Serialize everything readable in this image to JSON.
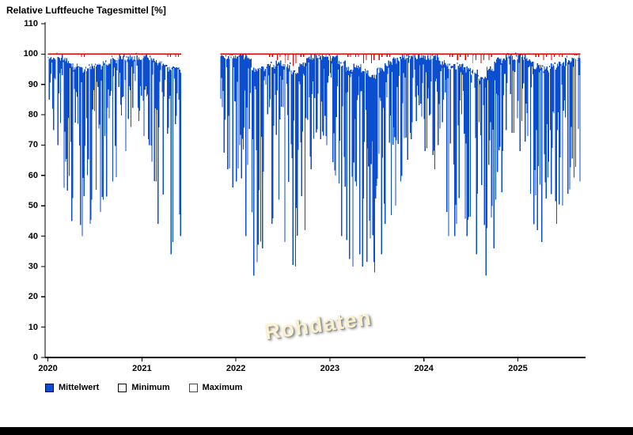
{
  "title": "Relative Luftfeuche Tagesmittel [%]",
  "watermark": "Rohdaten",
  "legend": {
    "items": [
      {
        "label": "Mittelwert",
        "fill": "#0b4fd0",
        "border": "#000000"
      },
      {
        "label": "Minimum",
        "fill": "#ffffff",
        "border": "#000000"
      },
      {
        "label": "Maximum",
        "fill": "#ffffff",
        "border": "#e60000"
      }
    ]
  },
  "colors": {
    "mean": "#0b4fd0",
    "max": "#e60000",
    "axis": "#000000",
    "background": "#ffffff",
    "watermark_fill": "#faf1cd"
  },
  "chart_data": {
    "type": "line",
    "title": "Relative Luftfeuche Tagesmittel [%]",
    "y_unit": "%",
    "ylim": [
      0,
      110
    ],
    "yticks": [
      0,
      10,
      20,
      30,
      40,
      50,
      60,
      70,
      80,
      90,
      100,
      110
    ],
    "xticks": [
      2020,
      2021,
      2022,
      2023,
      2024,
      2025
    ],
    "xlim": [
      2019.97,
      2025.72
    ],
    "grid": false,
    "legend_position": "bottom-left",
    "x_start": "2020-01",
    "x_resolution": "monthly envelope of daily values (daily series too dense to enumerate)",
    "data_gap": {
      "from": 2021.42,
      "to": 2021.83
    },
    "missing_day_lines": [
      2020.09,
      2022.53,
      2024.53
    ],
    "series": [
      {
        "name": "Mittelwert",
        "style": "daily mean line, rendered as dense blue vertical range strokes",
        "lower": [
          75,
          70,
          55,
          45,
          40,
          44,
          48,
          52,
          58,
          68,
          76,
          78,
          70,
          58,
          44,
          34,
          40,
          null,
          null,
          null,
          null,
          null,
          62,
          56,
          58,
          40,
          27,
          36,
          44,
          52,
          38,
          30,
          42,
          62,
          72,
          70,
          60,
          40,
          30,
          34,
          30,
          28,
          34,
          44,
          50,
          58,
          72,
          78,
          68,
          62,
          48,
          40,
          44,
          40,
          34,
          27,
          36,
          52,
          68,
          74,
          68,
          54,
          42,
          38,
          44,
          50,
          54,
          58
        ],
        "upper": [
          100,
          100,
          99,
          97,
          96,
          97,
          97,
          98,
          99,
          100,
          100,
          100,
          100,
          99,
          98,
          96,
          96,
          null,
          null,
          null,
          null,
          null,
          100,
          100,
          100,
          100,
          96,
          96,
          97,
          98,
          97,
          95,
          98,
          100,
          100,
          100,
          100,
          98,
          96,
          97,
          95,
          94,
          96,
          98,
          99,
          100,
          100,
          100,
          100,
          100,
          98,
          97,
          97,
          96,
          95,
          93,
          96,
          99,
          100,
          100,
          100,
          99,
          97,
          96,
          97,
          98,
          99,
          100
        ]
      },
      {
        "name": "Maximum",
        "style": "red line pinned at 100 with short downward dips",
        "values": [
          100,
          100,
          100,
          100,
          99,
          100,
          100,
          100,
          100,
          100,
          100,
          100,
          100,
          100,
          100,
          99,
          99,
          null,
          null,
          null,
          null,
          null,
          100,
          100,
          100,
          100,
          100,
          100,
          99,
          98,
          97,
          96,
          99,
          100,
          100,
          100,
          100,
          100,
          99,
          99,
          97,
          97,
          98,
          99,
          100,
          100,
          100,
          100,
          100,
          100,
          100,
          99,
          98,
          98,
          97,
          97,
          98,
          100,
          100,
          100,
          100,
          100,
          99,
          98,
          98,
          99,
          100,
          100
        ]
      },
      {
        "name": "Minimum",
        "style": "plotted in white - not distinguishable from background in the image"
      }
    ]
  }
}
